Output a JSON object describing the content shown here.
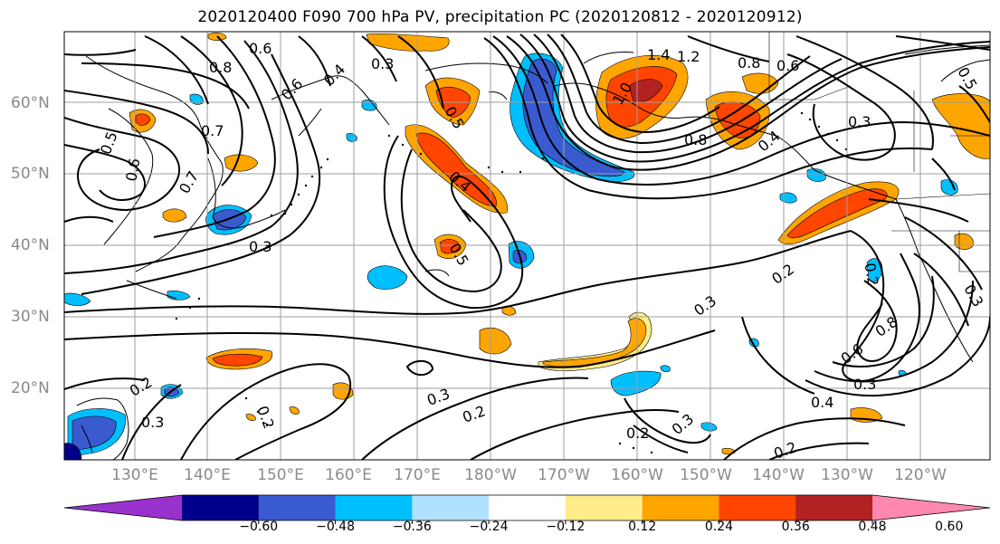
{
  "title": "2020120400 F090 700 hPa PV, precipitation PC (2020120812 - 2020120912)",
  "lat_labels": [
    "60°N",
    "50°N",
    "40°N",
    "30°N",
    "20°N"
  ],
  "lon_labels": [
    "130°E",
    "140°E",
    "150°E",
    "160°E",
    "170°E",
    "180°W",
    "170°W",
    "160°W",
    "150°W",
    "140°W",
    "130°W",
    "120°W"
  ],
  "colorbar": {
    "tick_labels": [
      "−0.60",
      "−0.48",
      "−0.36",
      "−0.24",
      "−0.12",
      "0.12",
      "0.24",
      "0.36",
      "0.48",
      "0.60"
    ],
    "colors": [
      "#9932cc",
      "#00008b",
      "#3a5bd0",
      "#00bfff",
      "#b0e2ff",
      "#ffffff",
      "#ffec8b",
      "#ffa500",
      "#ff4500",
      "#b22222",
      "#ff88b0"
    ]
  },
  "contour_labels": [
    "0.6",
    "0.8",
    "0.3",
    "0.4",
    "0.6",
    "0.7",
    "0.5",
    "0.6",
    "0.7",
    "0.3",
    "0.5",
    "0.4",
    "0.5",
    "1.4",
    "1.2",
    "1.0",
    "0.8",
    "0.6",
    "0.8",
    "0.4",
    "0.3",
    "0.2",
    "0.3",
    "0.8",
    "0.6",
    "0.3",
    "0.2",
    "0.3",
    "0.2",
    "0.2",
    "0.3",
    "0.2",
    "0.2",
    "0.3",
    "0.4",
    "0.2",
    "0.5",
    "0.3"
  ]
}
